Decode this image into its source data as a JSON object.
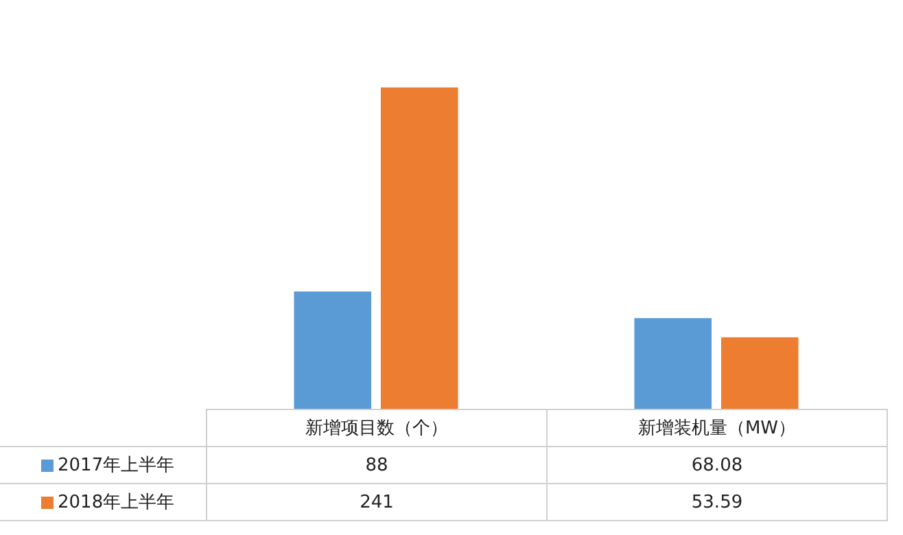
{
  "chart_data": {
    "type": "bar",
    "categories": [
      "新增项目数（个）",
      "新增装机量（MW）"
    ],
    "series": [
      {
        "name": "2017年上半年",
        "color": "#5b9bd5",
        "values": [
          88,
          68.08
        ]
      },
      {
        "name": "2018年上半年",
        "color": "#ed7d31",
        "values": [
          241,
          53.59
        ]
      }
    ],
    "data_labels": true,
    "legend": "bottom left"
  }
}
